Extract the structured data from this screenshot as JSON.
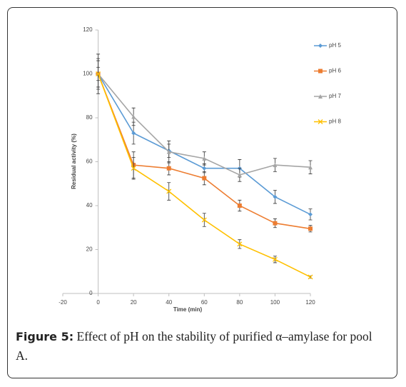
{
  "chart_data": {
    "type": "line",
    "xlabel": "Time (min)",
    "ylabel": "Residual activity (%)",
    "x": [
      0,
      20,
      40,
      60,
      80,
      100,
      120
    ],
    "xlim": [
      -20,
      120
    ],
    "xticks": [
      -20,
      0,
      20,
      40,
      60,
      80,
      100,
      120
    ],
    "ylim": [
      0,
      120
    ],
    "yticks": [
      0,
      20,
      40,
      60,
      80,
      100,
      120
    ],
    "grid": false,
    "legend": "right",
    "series": [
      {
        "name": "pH 5",
        "color": "#5b9bd5",
        "marker": "diamond",
        "values": [
          100,
          73,
          65,
          57,
          57,
          44,
          36
        ],
        "errors": [
          7,
          5,
          3,
          2,
          4,
          3,
          2.5
        ]
      },
      {
        "name": "pH 6",
        "color": "#ed7d31",
        "marker": "square",
        "values": [
          100,
          58.5,
          57,
          52.5,
          40,
          32,
          29.5
        ],
        "errors": [
          3,
          6,
          3,
          3,
          2.5,
          2,
          1.5
        ]
      },
      {
        "name": "pH 7",
        "color": "#a5a5a5",
        "marker": "triangle",
        "values": [
          100,
          80.5,
          64.5,
          61.5,
          54,
          58.5,
          57.5
        ],
        "errors": [
          9,
          4,
          5,
          3,
          3,
          3,
          3
        ]
      },
      {
        "name": "pH 8",
        "color": "#ffc000",
        "marker": "cross",
        "values": [
          100,
          57,
          46.5,
          33.5,
          22.5,
          15.5,
          7.5
        ],
        "errors": [
          6,
          5,
          4,
          3,
          2,
          1.5,
          0.5
        ]
      }
    ]
  },
  "caption": {
    "label": "Figure 5:",
    "text": "Effect of pH on the stability of purified α–amylase for pool A."
  }
}
